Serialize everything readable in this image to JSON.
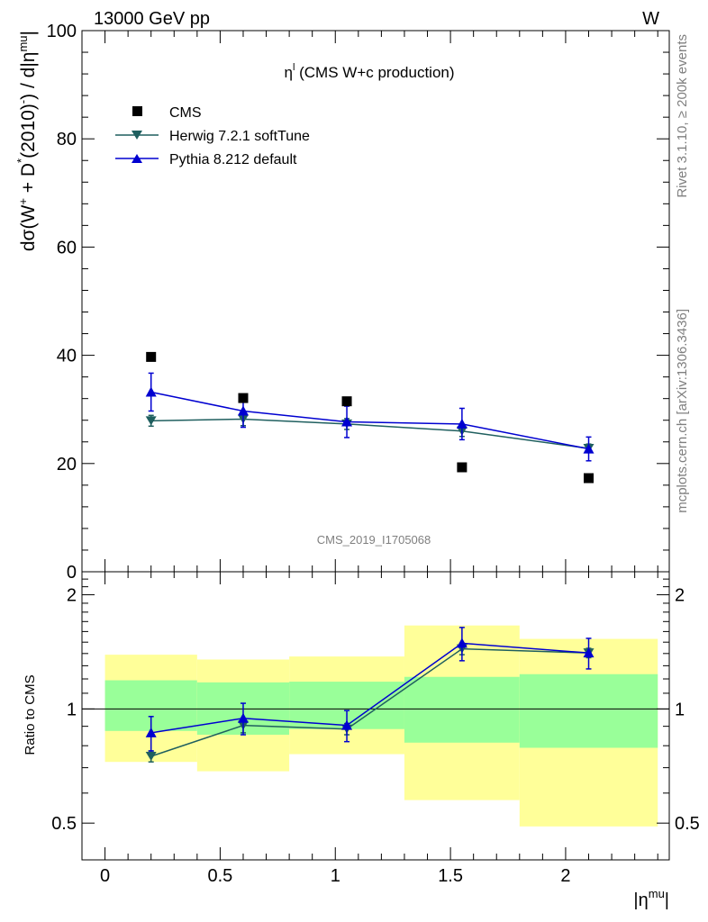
{
  "header": {
    "left": "13000 GeV pp",
    "right": "W"
  },
  "side_text": {
    "rivet": "Rivet 3.1.10, ≥ 200k events",
    "mcplots": "mcplots.cern.ch [arXiv:1306.3436]"
  },
  "chart_data": [
    {
      "type": "scatter",
      "title": "η^l (CMS W+c production)",
      "title_main": "η",
      "title_sup": "l",
      "title_rest": " (CMS W+c production)",
      "watermark": "CMS_2019_I1705068",
      "ylabel": "dσ(W⁺ + D*(2010)⁻) / d|η^mu|",
      "ylim": [
        0,
        100
      ],
      "xlim": [
        -0.1,
        2.45
      ],
      "y_ticks": [
        "0",
        "20",
        "40",
        "60",
        "80",
        "100"
      ],
      "legend_position": "top-left",
      "x": [
        0.2,
        0.6,
        1.05,
        1.55,
        2.1
      ],
      "series": [
        {
          "name": "CMS",
          "marker": "square",
          "color": "#000000",
          "values": [
            39.7,
            32.1,
            31.5,
            19.3,
            17.3
          ]
        },
        {
          "name": "Herwig 7.2.1 softTune",
          "marker": "triangle-down",
          "color": "#1f5f5f",
          "values": [
            27.9,
            28.2,
            27.3,
            26.0,
            22.8
          ],
          "errors": [
            1.0,
            1.2,
            1.0,
            1.0,
            0.8
          ]
        },
        {
          "name": "Pythia 8.212 default",
          "marker": "triangle-up",
          "color": "#0000d0",
          "values": [
            33.2,
            29.7,
            27.7,
            27.3,
            22.7
          ],
          "errors": [
            3.5,
            3.0,
            2.9,
            2.9,
            2.2
          ]
        }
      ]
    },
    {
      "type": "scatter",
      "ylabel": "Ratio to CMS",
      "xlabel": "|η^mu|",
      "xlabel_main": "|η",
      "xlabel_sup": "mu",
      "xlabel_end": "|",
      "ylim": [
        0.4,
        2.3
      ],
      "log_y": true,
      "y_ticks": [
        "0.5",
        "1",
        "2"
      ],
      "x_ticks": [
        "0",
        "0.5",
        "1",
        "1.5",
        "2"
      ],
      "bands": {
        "bins": [
          0.0,
          0.4,
          0.8,
          1.3,
          1.8,
          2.4
        ],
        "green_low": [
          0.875,
          0.855,
          0.885,
          0.815,
          0.79
        ],
        "green_high": [
          1.19,
          1.175,
          1.18,
          1.215,
          1.235
        ],
        "yellow_low": [
          0.725,
          0.685,
          0.76,
          0.575,
          0.49
        ],
        "yellow_high": [
          1.39,
          1.35,
          1.375,
          1.66,
          1.53
        ],
        "green_color": "#99ff99",
        "yellow_color": "#ffff99"
      },
      "reference_line": 1,
      "series": [
        {
          "name": "Herwig 7.2.1 softTune",
          "color": "#1f5f5f",
          "values": [
            0.75,
            0.905,
            0.885,
            1.44,
            1.405
          ],
          "errors": [
            0.025,
            0.04,
            0.03,
            0.05,
            0.04
          ]
        },
        {
          "name": "Pythia 8.212 default",
          "color": "#0000d0",
          "values": [
            0.865,
            0.945,
            0.905,
            1.49,
            1.405
          ],
          "errors": [
            0.09,
            0.09,
            0.085,
            0.15,
            0.13
          ]
        }
      ]
    }
  ]
}
